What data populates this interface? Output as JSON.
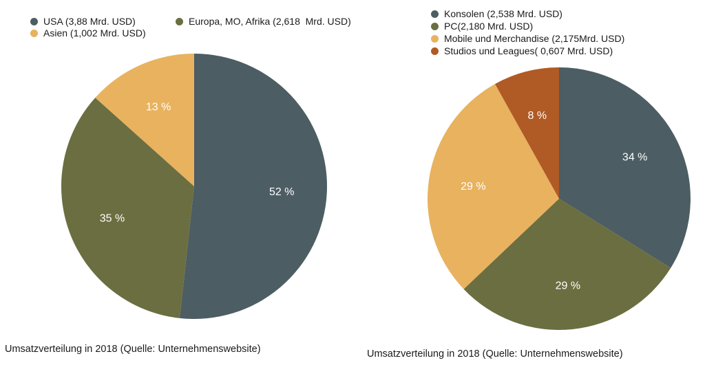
{
  "chart_data": [
    {
      "type": "pie",
      "legend": [
        "USA (3,88 Mrd. USD)",
        "Europa, MO, Afrika (2,618  Mrd. USD)",
        "Asien (1,002 Mrd. USD)"
      ],
      "values": [
        3.88,
        2.618,
        1.002
      ],
      "value_labels": [
        "52 %",
        "35 %",
        "13 %"
      ],
      "colors": [
        "#4c5d63",
        "#6b6e40",
        "#e8b25f"
      ],
      "caption": "Umsatzverteilung in 2018 (Quelle: Unternehmenswebsite)"
    },
    {
      "type": "pie",
      "legend": [
        "Konsolen (2,538 Mrd. USD)",
        "PC(2,180 Mrd. USD)",
        "Mobile und Merchandise (2,175Mrd. USD)",
        "Studios und Leagues( 0,607 Mrd. USD)"
      ],
      "values": [
        2.538,
        2.18,
        2.175,
        0.607
      ],
      "value_labels": [
        "34 %",
        "29 %",
        "29 %",
        "8 %"
      ],
      "colors": [
        "#4c5d63",
        "#6b6e40",
        "#e8b25f",
        "#b05a25"
      ],
      "caption": "Umsatzverteilung in 2018 (Quelle: Unternehmenswebsite)"
    }
  ]
}
